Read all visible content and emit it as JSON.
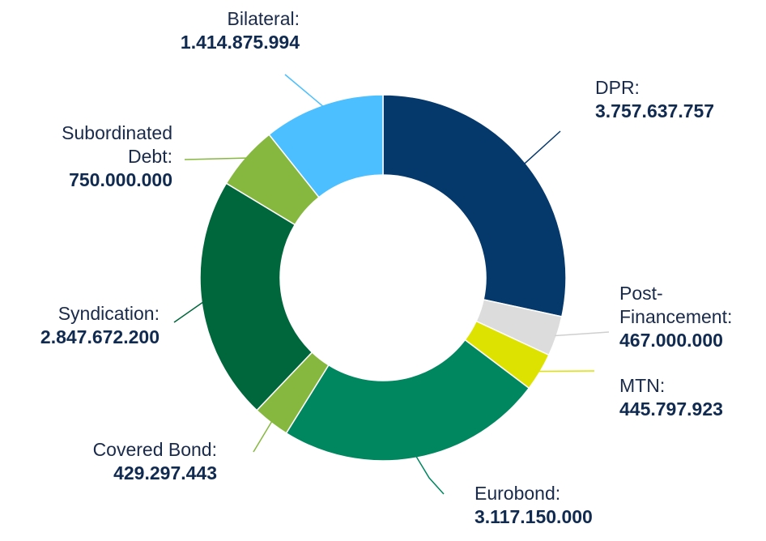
{
  "chart_data": {
    "type": "pie",
    "donut": true,
    "slices": [
      {
        "name": "DPR:",
        "value_label": "3.757.637.757",
        "value": 3757637757,
        "color": "#05386b"
      },
      {
        "name": "Post-Financement:",
        "name_lines": [
          "Post-",
          "Financement:"
        ],
        "value_label": "467.000.000",
        "value": 467000000,
        "color": "#dcdcdc"
      },
      {
        "name": "MTN:",
        "value_label": "445.797.923",
        "value": 445797923,
        "color": "#dde200"
      },
      {
        "name": "Eurobond:",
        "value_label": "3.117.150.000",
        "value": 3117150000,
        "color": "#00875f"
      },
      {
        "name": "Covered Bond:",
        "value_label": "429.297.443",
        "value": 429297443,
        "color": "#86b83f"
      },
      {
        "name": "Syndication:",
        "value_label": "2.847.672.200",
        "value": 2847672200,
        "color": "#00673d"
      },
      {
        "name": "Subordinated Debt:",
        "name_lines": [
          "Subordinated",
          "Debt:"
        ],
        "value_label": "750.000.000",
        "value": 750000000,
        "color": "#86b83f"
      },
      {
        "name": "Bilateral:",
        "value_label": "1.414.875.994",
        "value": 1414875994,
        "color": "#4bbfff"
      }
    ]
  }
}
